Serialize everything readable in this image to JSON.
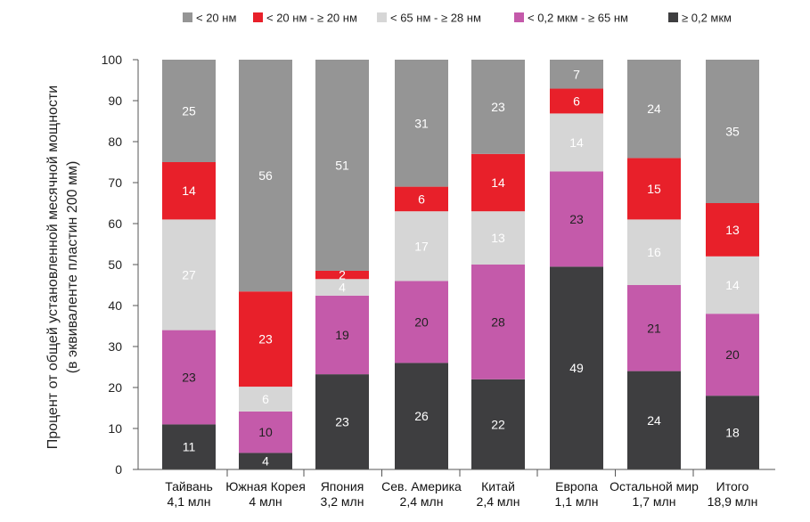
{
  "chart_data": {
    "type": "bar",
    "stacked": true,
    "title": "",
    "ylabel_line1": "Процент от общей установленной месячной мощности",
    "ylabel_line2": "(в эквиваленте пластин 200 мм)",
    "xlabel": "",
    "ylim": [
      0,
      100
    ],
    "yticks": [
      0,
      10,
      20,
      30,
      40,
      50,
      60,
      70,
      80,
      90,
      100
    ],
    "categories": [
      {
        "name": "Тайвань",
        "sub": "4,1 млн"
      },
      {
        "name": "Южная Корея",
        "sub": "4 млн"
      },
      {
        "name": "Япония",
        "sub": "3,2 млн"
      },
      {
        "name": "Сев. Америка",
        "sub": "2,4 млн"
      },
      {
        "name": "Китай",
        "sub": "2,4 млн"
      },
      {
        "name": "Европа",
        "sub": "1,1 млн"
      },
      {
        "name": "Остальной мир",
        "sub": "1,7 млн"
      },
      {
        "name": "Итого",
        "sub": "18,9 млн"
      }
    ],
    "series": [
      {
        "name": "≥ 0,2 мкм",
        "color": "#3e3e40",
        "label_color": "#ffffff",
        "values": [
          11,
          4,
          23,
          26,
          22,
          49,
          24,
          18
        ]
      },
      {
        "name": "< 0,2 мкм - ≥ 65 нм",
        "color": "#c45aaa",
        "label_color": "#222222",
        "values": [
          23,
          10,
          19,
          20,
          28,
          23,
          21,
          20
        ]
      },
      {
        "name": "< 65 нм - ≥ 28 нм",
        "color": "#d6d6d6",
        "label_color": "#ffffff",
        "values": [
          27,
          6,
          4,
          17,
          13,
          14,
          16,
          14
        ]
      },
      {
        "name": "< 20 нм - ≥ 20 нм",
        "color": "#e8202a",
        "label_color": "#ffffff",
        "values": [
          14,
          23,
          2,
          6,
          14,
          6,
          15,
          13
        ]
      },
      {
        "name": "< 20 нм",
        "color": "#959595",
        "label_color": "#ffffff",
        "values": [
          25,
          56,
          51,
          31,
          23,
          7,
          24,
          35
        ]
      }
    ],
    "legend_order": [
      "< 20 нм",
      "< 20 нм - ≥ 20 нм",
      "< 65 нм - ≥ 28 нм",
      "< 0,2 мкм - ≥ 65 нм",
      "≥ 0,2 мкм"
    ],
    "legend_position": "top",
    "grid": false
  }
}
